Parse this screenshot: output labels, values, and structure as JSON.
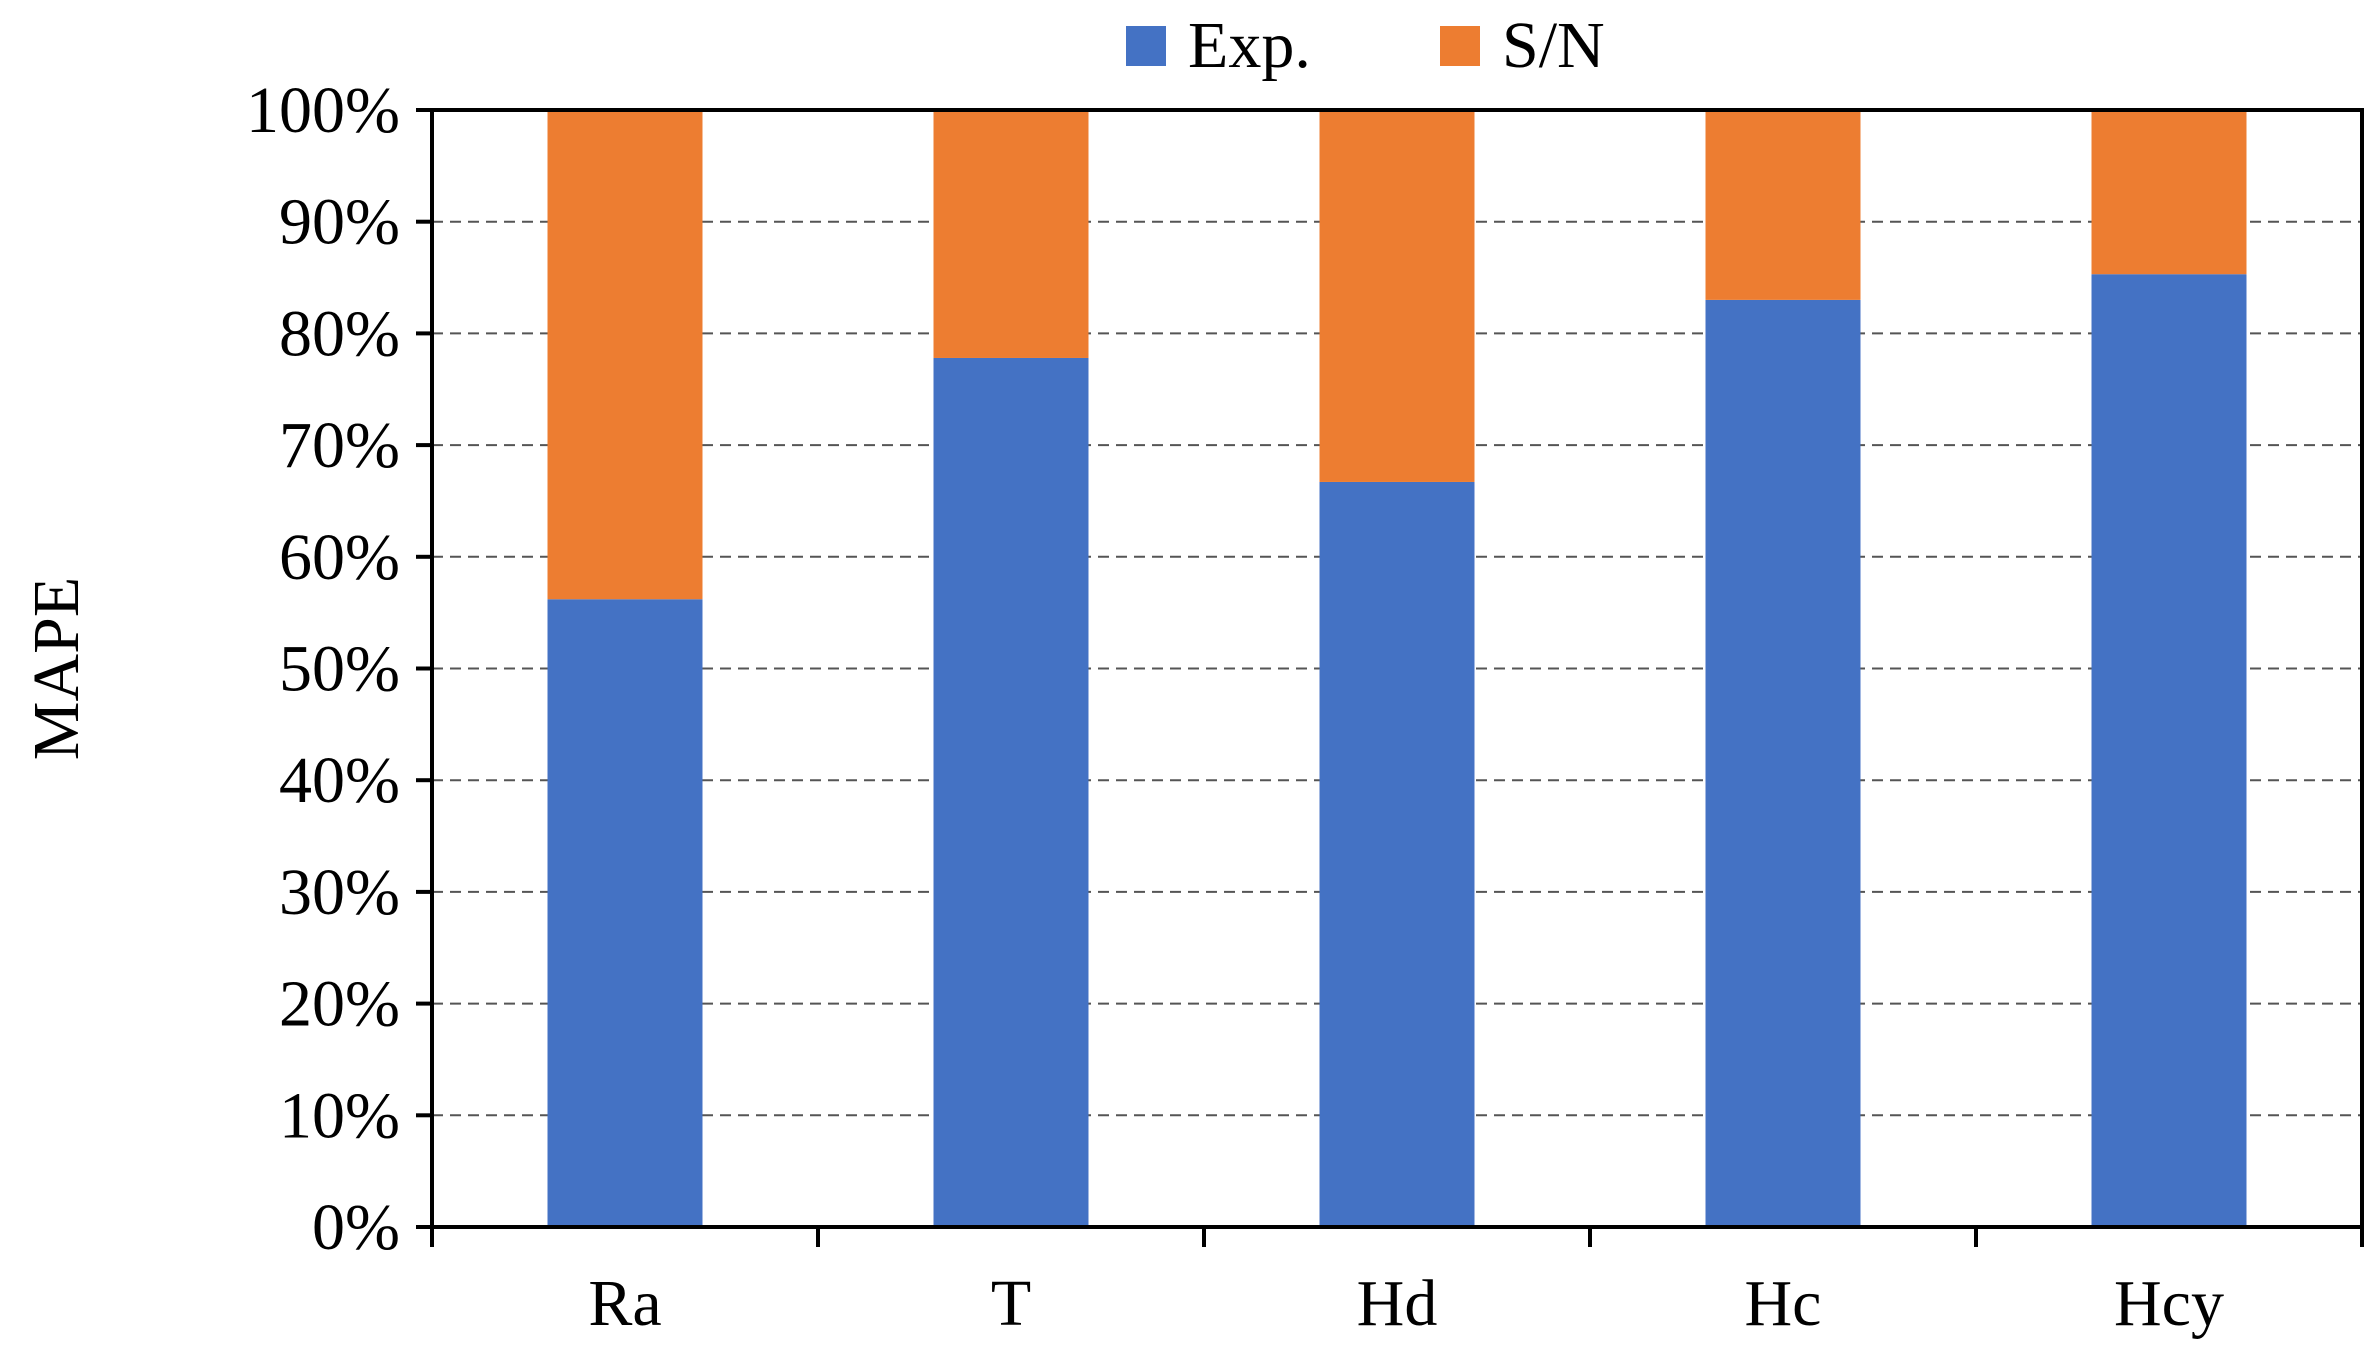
{
  "chart_data": {
    "type": "bar",
    "stacked": true,
    "ylabel": "MAPE",
    "xlabel": "",
    "categories": [
      "Ra",
      "T",
      "Hd",
      "Hc",
      "Hcy"
    ],
    "series": [
      {
        "name": "Exp.",
        "color": "#4472C4",
        "values": [
          56.2,
          77.8,
          66.7,
          83.0,
          85.3
        ]
      },
      {
        "name": "S/N",
        "color": "#ED7D31",
        "values": [
          43.8,
          22.2,
          33.3,
          17.0,
          14.7
        ]
      }
    ],
    "ylim": [
      0,
      100
    ],
    "yticks": [
      "0%",
      "10%",
      "20%",
      "30%",
      "40%",
      "50%",
      "60%",
      "70%",
      "80%",
      "90%",
      "100%"
    ],
    "grid": true,
    "legend_position": "top"
  }
}
